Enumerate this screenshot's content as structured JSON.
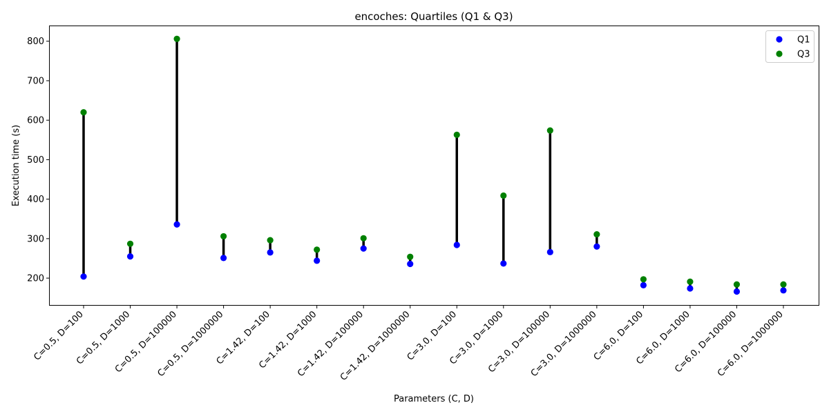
{
  "chart_data": {
    "type": "scatter",
    "title": "encoches: Quartiles (Q1 & Q3)",
    "xlabel": "Parameters (C, D)",
    "ylabel": "Execution time (s)",
    "categories": [
      "C=0.5, D=100",
      "C=0.5, D=1000",
      "C=0.5, D=100000",
      "C=0.5, D=1000000",
      "C=1.42, D=100",
      "C=1.42, D=1000",
      "C=1.42, D=100000",
      "C=1.42, D=1000000",
      "C=3.0, D=100",
      "C=3.0, D=1000",
      "C=3.0, D=100000",
      "C=3.0, D=1000000",
      "C=6.0, D=100",
      "C=6.0, D=1000",
      "C=6.0, D=100000",
      "C=6.0, D=1000000"
    ],
    "series": [
      {
        "name": "Q1",
        "color": "#0000ff",
        "values": [
          204,
          255,
          336,
          251,
          265,
          244,
          275,
          236,
          284,
          237,
          266,
          280,
          182,
          174,
          166,
          169
        ]
      },
      {
        "name": "Q3",
        "color": "#008000",
        "values": [
          620,
          287,
          806,
          306,
          296,
          272,
          301,
          254,
          563,
          409,
          574,
          311,
          197,
          191,
          184,
          184
        ]
      }
    ],
    "connector_color": "#000000",
    "yticks": [
      200,
      300,
      400,
      500,
      600,
      700,
      800
    ],
    "ylim": [
      132,
      838
    ],
    "grid": false,
    "legend_position": "top-right"
  }
}
